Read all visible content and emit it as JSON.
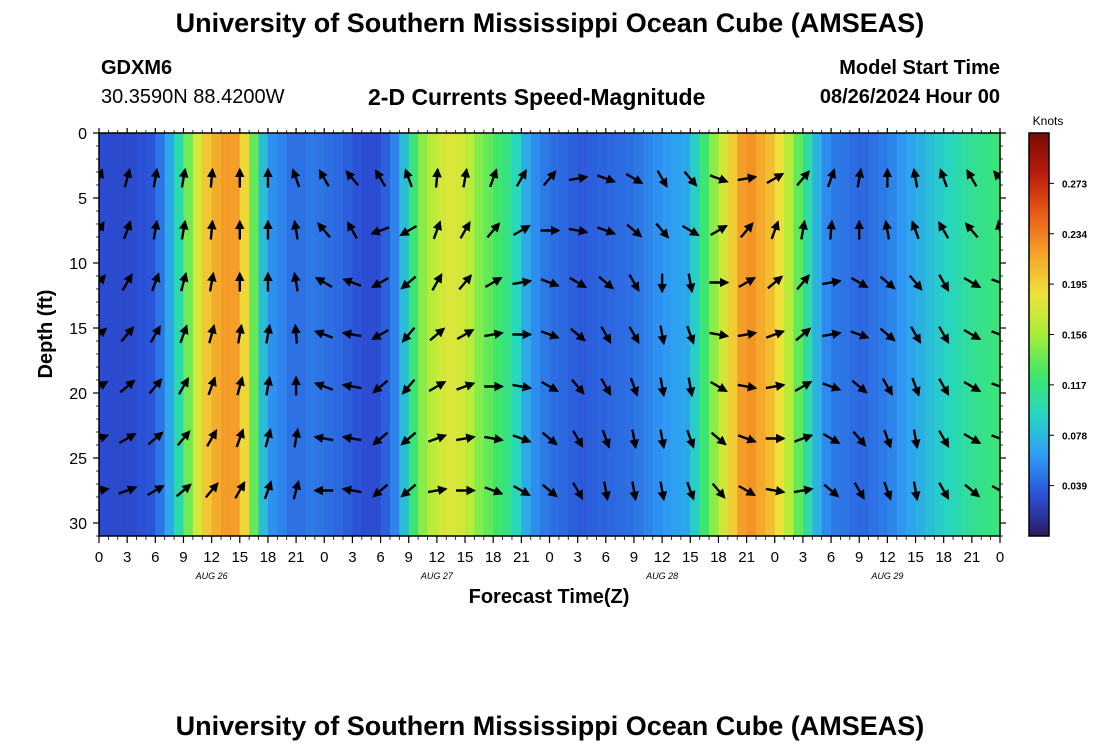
{
  "header": {
    "title": "University of Southern Mississippi Ocean Cube (AMSEAS)",
    "station": "GDXM6",
    "coords": "30.3590N  88.4200W",
    "subtitle": "2-D Currents Speed-Magnitude",
    "model_start_label": "Model Start Time",
    "model_start_value": "08/26/2024 Hour 00"
  },
  "footer": {
    "title": "University of Southern Mississippi Ocean Cube (AMSEAS)"
  },
  "colorbar": {
    "label": "Knots",
    "ticks": [
      "0.273",
      "0.234",
      "0.195",
      "0.156",
      "0.117",
      "0.078",
      "0.039"
    ],
    "tick_values": [
      0.273,
      0.234,
      0.195,
      0.156,
      0.117,
      0.078,
      0.039
    ],
    "range": [
      0,
      0.312
    ],
    "colors": [
      "#2a1a5e",
      "#2b4fd6",
      "#2f9cf5",
      "#27d6c0",
      "#3fe66a",
      "#a8ee3a",
      "#eee23a",
      "#f6a22a",
      "#e85a17",
      "#b81c0c",
      "#7a0a06"
    ]
  },
  "chart_data": {
    "type": "heatmap",
    "title": "2-D Currents Speed-Magnitude",
    "xlabel": "Forecast Time(Z)",
    "ylabel": "Depth (ft)",
    "units": "Knots",
    "x_range": [
      0,
      96
    ],
    "ylim": [
      0,
      31
    ],
    "x_ticks": [
      0,
      3,
      6,
      9,
      12,
      15,
      18,
      21,
      24,
      27,
      30,
      33,
      36,
      39,
      42,
      45,
      48,
      51,
      54,
      57,
      60,
      63,
      66,
      69,
      72,
      75,
      78,
      81,
      84,
      87,
      90,
      93,
      96
    ],
    "x_tick_labels": [
      "0",
      "3",
      "6",
      "9",
      "12",
      "15",
      "18",
      "21",
      "0",
      "3",
      "6",
      "9",
      "12",
      "15",
      "18",
      "21",
      "0",
      "3",
      "6",
      "9",
      "12",
      "15",
      "18",
      "21",
      "0",
      "3",
      "6",
      "9",
      "12",
      "15",
      "18",
      "21",
      "0"
    ],
    "date_labels": [
      {
        "label": "AUG 26",
        "hour": 12
      },
      {
        "label": "AUG 27",
        "hour": 36
      },
      {
        "label": "AUG 28",
        "hour": 60
      },
      {
        "label": "AUG 29",
        "hour": 84
      }
    ],
    "y_ticks": [
      0,
      5,
      10,
      15,
      20,
      25,
      30
    ],
    "y_tick_labels": [
      "0",
      "5",
      "10",
      "15",
      "20",
      "25",
      "30"
    ],
    "speed_profile": {
      "hours": [
        0,
        3,
        6,
        8,
        9,
        10,
        11,
        12,
        14,
        15,
        16,
        17,
        18,
        20,
        21,
        22,
        24,
        26,
        27,
        28,
        30,
        31,
        32,
        33,
        34,
        36,
        37,
        39,
        40,
        42,
        44,
        45,
        46,
        48,
        50,
        51,
        54,
        57,
        60,
        63,
        64,
        66,
        68,
        69,
        70,
        72,
        74,
        76,
        77,
        78,
        80,
        81,
        84,
        87,
        90,
        93,
        96
      ],
      "speed": [
        0.03,
        0.028,
        0.035,
        0.08,
        0.12,
        0.16,
        0.19,
        0.21,
        0.225,
        0.215,
        0.17,
        0.1,
        0.06,
        0.05,
        0.04,
        0.05,
        0.045,
        0.04,
        0.035,
        0.03,
        0.03,
        0.045,
        0.06,
        0.1,
        0.14,
        0.17,
        0.18,
        0.175,
        0.15,
        0.13,
        0.11,
        0.08,
        0.06,
        0.045,
        0.04,
        0.035,
        0.04,
        0.045,
        0.06,
        0.07,
        0.11,
        0.16,
        0.21,
        0.23,
        0.22,
        0.2,
        0.15,
        0.09,
        0.06,
        0.05,
        0.045,
        0.04,
        0.05,
        0.07,
        0.09,
        0.11,
        0.12
      ]
    },
    "arrow_depths": [
      3.5,
      7.5,
      11.5,
      15.5,
      19.5,
      23.5,
      27.5
    ],
    "arrow_hours": [
      0,
      3,
      6,
      9,
      12,
      15,
      18,
      21,
      24,
      27,
      30,
      33,
      36,
      39,
      42,
      45,
      48,
      51,
      54,
      57,
      60,
      63,
      66,
      69,
      72,
      75,
      78,
      81,
      84,
      87,
      90,
      93,
      96
    ],
    "arrow_rows": [
      [
        20,
        15,
        10,
        10,
        5,
        0,
        0,
        340,
        330,
        320,
        330,
        340,
        5,
        10,
        20,
        30,
        40,
        80,
        110,
        120,
        150,
        140,
        110,
        80,
        60,
        40,
        20,
        10,
        0,
        350,
        340,
        330,
        320
      ],
      [
        30,
        20,
        10,
        10,
        5,
        0,
        0,
        350,
        320,
        330,
        250,
        240,
        20,
        30,
        40,
        60,
        90,
        100,
        110,
        130,
        140,
        120,
        60,
        40,
        20,
        10,
        5,
        0,
        350,
        340,
        330,
        320,
        350
      ],
      [
        40,
        30,
        20,
        15,
        10,
        0,
        0,
        350,
        300,
        290,
        240,
        230,
        30,
        40,
        60,
        80,
        110,
        120,
        130,
        150,
        180,
        170,
        90,
        60,
        50,
        40,
        80,
        120,
        130,
        140,
        150,
        120,
        110
      ],
      [
        50,
        40,
        30,
        20,
        15,
        10,
        10,
        355,
        290,
        280,
        240,
        220,
        50,
        60,
        80,
        90,
        110,
        130,
        150,
        150,
        170,
        160,
        100,
        80,
        70,
        50,
        80,
        110,
        130,
        150,
        150,
        120,
        110
      ],
      [
        60,
        50,
        40,
        30,
        20,
        15,
        10,
        360,
        290,
        280,
        230,
        220,
        60,
        70,
        90,
        100,
        120,
        140,
        150,
        160,
        170,
        170,
        120,
        100,
        80,
        60,
        110,
        130,
        150,
        160,
        150,
        120,
        110
      ],
      [
        70,
        60,
        50,
        40,
        30,
        20,
        15,
        10,
        280,
        280,
        230,
        230,
        70,
        80,
        100,
        110,
        130,
        150,
        160,
        170,
        170,
        160,
        130,
        110,
        90,
        70,
        120,
        140,
        160,
        170,
        150,
        120,
        110
      ],
      [
        80,
        70,
        60,
        50,
        40,
        30,
        20,
        15,
        270,
        280,
        230,
        230,
        80,
        90,
        110,
        120,
        130,
        150,
        170,
        170,
        170,
        160,
        140,
        120,
        100,
        80,
        130,
        150,
        160,
        170,
        150,
        130,
        120
      ]
    ]
  }
}
